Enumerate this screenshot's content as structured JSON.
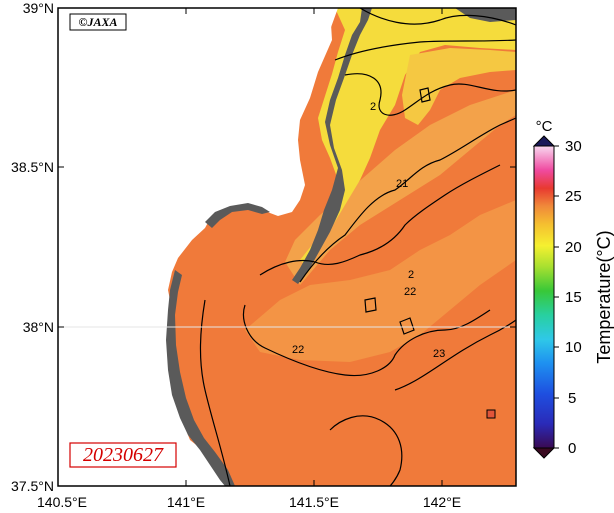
{
  "map": {
    "credit": "©JAXA",
    "date": "20230627",
    "lat_labels": [
      "39°N",
      "38.5°N",
      "38°N",
      "37.5°N"
    ],
    "lon_labels": [
      "140.5°E",
      "141°E",
      "141.5°E",
      "142°E"
    ],
    "contour_labels": [
      "21",
      "22",
      "22",
      "23",
      "2",
      "2"
    ],
    "colors": {
      "land": "#5a5a5a",
      "sea_warm": "#f07a3a",
      "sea_mid": "#f2a040",
      "sea_cool": "#f5dc3c",
      "coast_band": "#ef6f3a"
    }
  },
  "colorbar": {
    "title": "Temperature(°C)",
    "unit": "°C",
    "ticks": [
      "30",
      "25",
      "20",
      "15",
      "10",
      "5",
      "0"
    ],
    "range": [
      0,
      30
    ]
  }
}
